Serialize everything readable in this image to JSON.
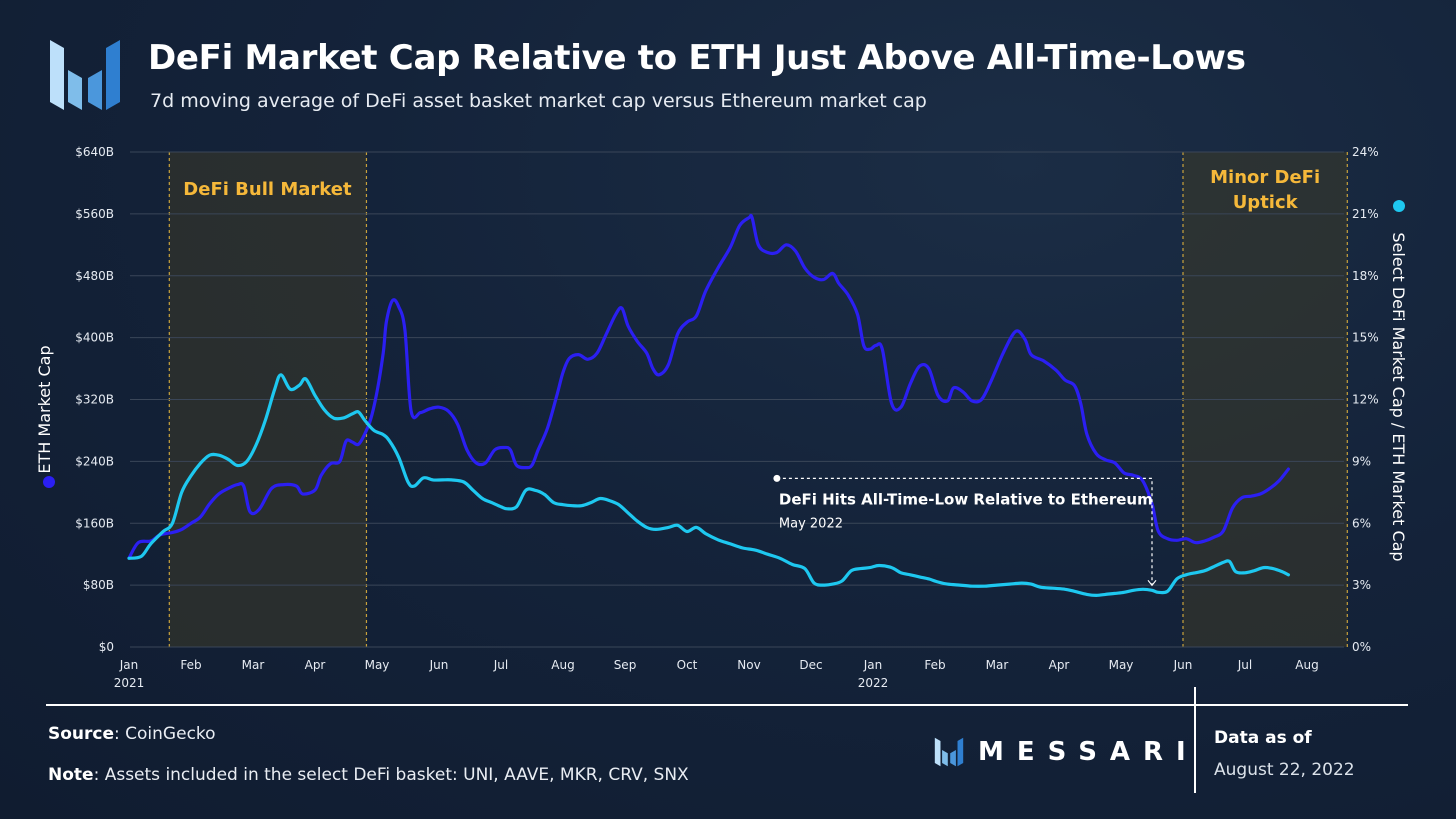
{
  "header": {
    "title": "DeFi Market Cap Relative to ETH Just Above All-Time-Lows",
    "subtitle": "7d moving average of DeFi asset basket market cap versus Ethereum market cap"
  },
  "footer": {
    "source_label": "Source",
    "source_text": ": CoinGecko",
    "note_label": "Note",
    "note_text": ": Assets included in the select DeFi basket: UNI, AAVE, MKR, CRV, SNX",
    "brand": "MESSARI",
    "data_as_of_label": "Data as of",
    "data_as_of_date": "August 22, 2022"
  },
  "colors": {
    "eth_series": "#2b1ff2",
    "ratio_series": "#1ec8f0",
    "highlight_text": "#f5b83a",
    "shade": "#3c3a28",
    "grid": "#3a4658",
    "axis_text": "#e6ebf2",
    "brand_blue": "#3d8fd8"
  },
  "chart_data": {
    "type": "line",
    "x_tick_labels": [
      "Jan",
      "Feb",
      "Mar",
      "Apr",
      "May",
      "Jun",
      "Jul",
      "Aug",
      "Sep",
      "Oct",
      "Nov",
      "Dec",
      "Jan",
      "Feb",
      "Mar",
      "Apr",
      "May",
      "Jun",
      "Jul",
      "Aug"
    ],
    "x_year_labels": [
      {
        "index": 0,
        "label": "2021"
      },
      {
        "index": 12,
        "label": "2022"
      }
    ],
    "x_range_months": [
      0,
      19.7
    ],
    "y_left": {
      "label": "ETH Market Cap",
      "ticks": [
        "$0",
        "$80B",
        "$160B",
        "$240B",
        "$320B",
        "$400B",
        "$480B",
        "$560B",
        "$640B"
      ],
      "range": [
        0,
        640
      ]
    },
    "y_right": {
      "label": "Select DeFi Market Cap / ETH Market Cap",
      "ticks": [
        "0%",
        "3%",
        "6%",
        "9%",
        "12%",
        "15%",
        "18%",
        "21%",
        "24%"
      ],
      "range": [
        0,
        24
      ]
    },
    "grid": "horizontal",
    "series": [
      {
        "name": "ETH Market Cap",
        "axis": "left",
        "points": [
          [
            0.0,
            115
          ],
          [
            0.15,
            135
          ],
          [
            0.35,
            137
          ],
          [
            0.5,
            145
          ],
          [
            0.7,
            148
          ],
          [
            0.85,
            152
          ],
          [
            1.0,
            160
          ],
          [
            1.15,
            168
          ],
          [
            1.3,
            185
          ],
          [
            1.45,
            198
          ],
          [
            1.6,
            205
          ],
          [
            1.75,
            210
          ],
          [
            1.85,
            208
          ],
          [
            1.95,
            175
          ],
          [
            2.1,
            178
          ],
          [
            2.3,
            205
          ],
          [
            2.5,
            210
          ],
          [
            2.7,
            208
          ],
          [
            2.8,
            198
          ],
          [
            3.0,
            203
          ],
          [
            3.1,
            222
          ],
          [
            3.25,
            237
          ],
          [
            3.4,
            240
          ],
          [
            3.5,
            266
          ],
          [
            3.6,
            265
          ],
          [
            3.7,
            262
          ],
          [
            3.8,
            275
          ],
          [
            3.9,
            295
          ],
          [
            4.0,
            330
          ],
          [
            4.1,
            380
          ],
          [
            4.15,
            420
          ],
          [
            4.25,
            448
          ],
          [
            4.35,
            440
          ],
          [
            4.45,
            410
          ],
          [
            4.55,
            305
          ],
          [
            4.7,
            303
          ],
          [
            4.85,
            308
          ],
          [
            5.0,
            310
          ],
          [
            5.15,
            305
          ],
          [
            5.3,
            288
          ],
          [
            5.45,
            255
          ],
          [
            5.6,
            238
          ],
          [
            5.75,
            238
          ],
          [
            5.9,
            255
          ],
          [
            6.05,
            258
          ],
          [
            6.15,
            255
          ],
          [
            6.25,
            235
          ],
          [
            6.4,
            232
          ],
          [
            6.5,
            235
          ],
          [
            6.6,
            255
          ],
          [
            6.75,
            283
          ],
          [
            6.9,
            325
          ],
          [
            7.0,
            355
          ],
          [
            7.1,
            373
          ],
          [
            7.25,
            378
          ],
          [
            7.4,
            372
          ],
          [
            7.55,
            380
          ],
          [
            7.7,
            405
          ],
          [
            7.85,
            430
          ],
          [
            7.95,
            438
          ],
          [
            8.05,
            415
          ],
          [
            8.2,
            395
          ],
          [
            8.35,
            380
          ],
          [
            8.45,
            360
          ],
          [
            8.55,
            352
          ],
          [
            8.7,
            365
          ],
          [
            8.85,
            405
          ],
          [
            9.0,
            420
          ],
          [
            9.15,
            428
          ],
          [
            9.3,
            460
          ],
          [
            9.5,
            490
          ],
          [
            9.7,
            517
          ],
          [
            9.85,
            545
          ],
          [
            10.0,
            555
          ],
          [
            10.05,
            555
          ],
          [
            10.15,
            520
          ],
          [
            10.3,
            510
          ],
          [
            10.45,
            510
          ],
          [
            10.6,
            520
          ],
          [
            10.75,
            512
          ],
          [
            10.9,
            490
          ],
          [
            11.05,
            478
          ],
          [
            11.2,
            475
          ],
          [
            11.35,
            483
          ],
          [
            11.45,
            470
          ],
          [
            11.6,
            455
          ],
          [
            11.75,
            430
          ],
          [
            11.85,
            390
          ],
          [
            11.95,
            385
          ],
          [
            12.05,
            390
          ],
          [
            12.15,
            385
          ],
          [
            12.3,
            315
          ],
          [
            12.45,
            310
          ],
          [
            12.6,
            340
          ],
          [
            12.75,
            363
          ],
          [
            12.9,
            360
          ],
          [
            13.05,
            325
          ],
          [
            13.2,
            318
          ],
          [
            13.3,
            335
          ],
          [
            13.45,
            330
          ],
          [
            13.6,
            318
          ],
          [
            13.75,
            320
          ],
          [
            13.9,
            343
          ],
          [
            14.1,
            380
          ],
          [
            14.3,
            408
          ],
          [
            14.45,
            398
          ],
          [
            14.55,
            378
          ],
          [
            14.75,
            370
          ],
          [
            14.95,
            358
          ],
          [
            15.1,
            345
          ],
          [
            15.25,
            338
          ],
          [
            15.35,
            315
          ],
          [
            15.45,
            275
          ],
          [
            15.6,
            250
          ],
          [
            15.75,
            242
          ],
          [
            15.9,
            238
          ],
          [
            16.05,
            225
          ],
          [
            16.2,
            222
          ],
          [
            16.35,
            215
          ],
          [
            16.5,
            185
          ],
          [
            16.6,
            150
          ],
          [
            16.75,
            140
          ],
          [
            16.9,
            138
          ],
          [
            17.05,
            140
          ],
          [
            17.2,
            135
          ],
          [
            17.35,
            137
          ],
          [
            17.5,
            142
          ],
          [
            17.65,
            150
          ],
          [
            17.8,
            180
          ],
          [
            17.95,
            193
          ],
          [
            18.1,
            195
          ],
          [
            18.25,
            198
          ],
          [
            18.4,
            205
          ],
          [
            18.55,
            215
          ],
          [
            18.7,
            230
          ]
        ]
      },
      {
        "name": "Select DeFi Market Cap / ETH Market Cap",
        "axis": "right",
        "points": [
          [
            0.0,
            4.3
          ],
          [
            0.2,
            4.4
          ],
          [
            0.35,
            5.0
          ],
          [
            0.55,
            5.6
          ],
          [
            0.7,
            6.0
          ],
          [
            0.85,
            7.5
          ],
          [
            1.0,
            8.3
          ],
          [
            1.15,
            8.9
          ],
          [
            1.3,
            9.3
          ],
          [
            1.45,
            9.3
          ],
          [
            1.6,
            9.1
          ],
          [
            1.75,
            8.8
          ],
          [
            1.9,
            9.0
          ],
          [
            2.05,
            9.8
          ],
          [
            2.2,
            11.0
          ],
          [
            2.35,
            12.5
          ],
          [
            2.45,
            13.2
          ],
          [
            2.6,
            12.5
          ],
          [
            2.75,
            12.7
          ],
          [
            2.85,
            13.0
          ],
          [
            3.0,
            12.2
          ],
          [
            3.15,
            11.5
          ],
          [
            3.3,
            11.1
          ],
          [
            3.45,
            11.1
          ],
          [
            3.6,
            11.3
          ],
          [
            3.7,
            11.4
          ],
          [
            3.8,
            11.0
          ],
          [
            3.95,
            10.5
          ],
          [
            4.1,
            10.3
          ],
          [
            4.2,
            10.0
          ],
          [
            4.35,
            9.2
          ],
          [
            4.5,
            8.0
          ],
          [
            4.6,
            7.8
          ],
          [
            4.75,
            8.2
          ],
          [
            4.9,
            8.1
          ],
          [
            5.05,
            8.1
          ],
          [
            5.2,
            8.1
          ],
          [
            5.4,
            8.0
          ],
          [
            5.55,
            7.6
          ],
          [
            5.7,
            7.2
          ],
          [
            5.85,
            7.0
          ],
          [
            6.0,
            6.8
          ],
          [
            6.1,
            6.7
          ],
          [
            6.25,
            6.8
          ],
          [
            6.4,
            7.6
          ],
          [
            6.55,
            7.6
          ],
          [
            6.7,
            7.4
          ],
          [
            6.85,
            7.0
          ],
          [
            7.0,
            6.9
          ],
          [
            7.15,
            6.85
          ],
          [
            7.3,
            6.85
          ],
          [
            7.45,
            7.0
          ],
          [
            7.6,
            7.2
          ],
          [
            7.75,
            7.1
          ],
          [
            7.9,
            6.9
          ],
          [
            8.05,
            6.5
          ],
          [
            8.2,
            6.1
          ],
          [
            8.35,
            5.8
          ],
          [
            8.5,
            5.7
          ],
          [
            8.7,
            5.8
          ],
          [
            8.85,
            5.9
          ],
          [
            9.0,
            5.6
          ],
          [
            9.15,
            5.8
          ],
          [
            9.3,
            5.5
          ],
          [
            9.5,
            5.2
          ],
          [
            9.7,
            5.0
          ],
          [
            9.9,
            4.8
          ],
          [
            10.1,
            4.7
          ],
          [
            10.3,
            4.5
          ],
          [
            10.5,
            4.3
          ],
          [
            10.7,
            4.0
          ],
          [
            10.9,
            3.8
          ],
          [
            11.05,
            3.1
          ],
          [
            11.2,
            3.0
          ],
          [
            11.35,
            3.05
          ],
          [
            11.5,
            3.2
          ],
          [
            11.65,
            3.7
          ],
          [
            11.8,
            3.8
          ],
          [
            11.95,
            3.85
          ],
          [
            12.1,
            3.95
          ],
          [
            12.3,
            3.85
          ],
          [
            12.45,
            3.6
          ],
          [
            12.6,
            3.5
          ],
          [
            12.75,
            3.4
          ],
          [
            12.9,
            3.3
          ],
          [
            13.05,
            3.15
          ],
          [
            13.2,
            3.05
          ],
          [
            13.4,
            3.0
          ],
          [
            13.6,
            2.95
          ],
          [
            13.8,
            2.95
          ],
          [
            14.0,
            3.0
          ],
          [
            14.2,
            3.05
          ],
          [
            14.4,
            3.1
          ],
          [
            14.55,
            3.05
          ],
          [
            14.7,
            2.9
          ],
          [
            14.9,
            2.85
          ],
          [
            15.1,
            2.8
          ],
          [
            15.25,
            2.7
          ],
          [
            15.45,
            2.55
          ],
          [
            15.6,
            2.5
          ],
          [
            15.75,
            2.55
          ],
          [
            15.9,
            2.6
          ],
          [
            16.05,
            2.65
          ],
          [
            16.2,
            2.75
          ],
          [
            16.35,
            2.8
          ],
          [
            16.5,
            2.75
          ],
          [
            16.6,
            2.65
          ],
          [
            16.75,
            2.7
          ],
          [
            16.9,
            3.3
          ],
          [
            17.05,
            3.5
          ],
          [
            17.2,
            3.6
          ],
          [
            17.35,
            3.7
          ],
          [
            17.5,
            3.9
          ],
          [
            17.65,
            4.1
          ],
          [
            17.75,
            4.15
          ],
          [
            17.85,
            3.65
          ],
          [
            18.0,
            3.6
          ],
          [
            18.15,
            3.7
          ],
          [
            18.3,
            3.85
          ],
          [
            18.45,
            3.8
          ],
          [
            18.6,
            3.65
          ],
          [
            18.7,
            3.5
          ]
        ]
      }
    ],
    "shaded_regions": [
      {
        "label": "DeFi Bull Market",
        "start": 0.65,
        "end": 3.83
      },
      {
        "label": "Minor DeFi\nUptick",
        "start": 17.0,
        "end": 19.65
      }
    ],
    "annotation": {
      "title": "DeFi Hits All-Time-Low Relative to Ethereum",
      "subtitle": "May 2022",
      "from_x": 10.45,
      "to_x": 16.5,
      "top_value_left": 218,
      "target_value_right": 2.7
    }
  }
}
